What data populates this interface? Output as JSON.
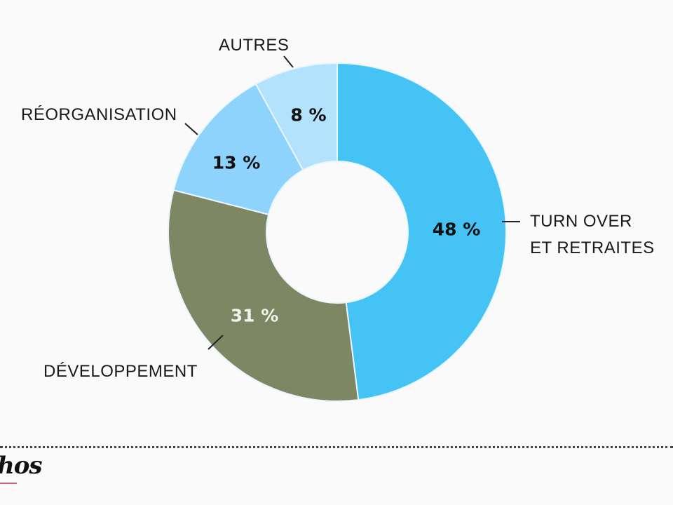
{
  "chart_data": {
    "type": "pie",
    "subtype": "donut",
    "title": "",
    "categories": [
      "Turn over et retraites",
      "Développement",
      "Réorganisation",
      "Autres"
    ],
    "values": [
      48,
      31,
      13,
      8
    ],
    "unit": "%",
    "colors": [
      "#45c3f5",
      "#7d8764",
      "#8dd3fb",
      "#b3e2fc"
    ],
    "legend": "none (direct labels with leader lines)"
  },
  "labels": {
    "turnover_line1": "TURN OVER",
    "turnover_line2": "ET  RETRAITES",
    "developpement": "DÉVELOPPEMENT",
    "reorganisation": "RÉORGANISATION",
    "autres": "AUTRES"
  },
  "values_text": {
    "turnover": "48 %",
    "developpement": "31 %",
    "reorganisation": "13 %",
    "autres": "8 %"
  },
  "footer": {
    "logo_text": "hos"
  }
}
